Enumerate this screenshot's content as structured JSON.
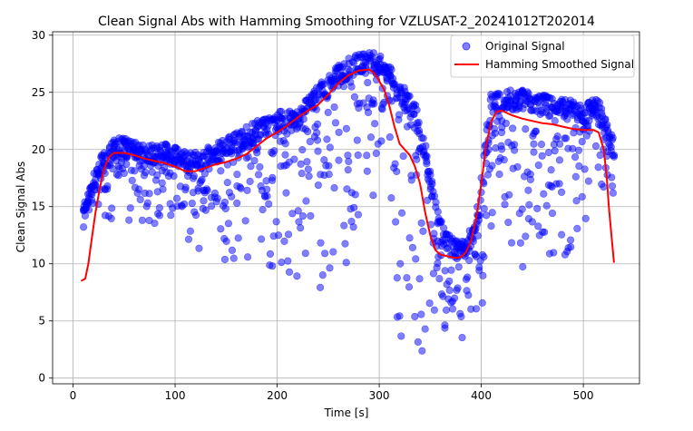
{
  "chart_data": {
    "type": "scatter",
    "title": "Clean Signal Abs with Hamming Smoothing for VZLUSAT-2_20241012T202014",
    "xlabel": "Time [s]",
    "ylabel": "Clean Signal Abs",
    "xlim": [
      -20,
      555
    ],
    "ylim": [
      -0.5,
      30.3
    ],
    "xticks": [
      0,
      100,
      200,
      300,
      400,
      500
    ],
    "yticks": [
      0,
      5,
      10,
      15,
      20,
      25,
      30
    ],
    "grid": true,
    "legend_position": "top-right",
    "series": [
      {
        "name": "Original Signal",
        "type": "scatter",
        "color": "#0000ff",
        "upper_envelope": [
          [
            10,
            14.8
          ],
          [
            15,
            16.5
          ],
          [
            20,
            17.8
          ],
          [
            25,
            19.0
          ],
          [
            30,
            19.9
          ],
          [
            35,
            20.5
          ],
          [
            40,
            20.9
          ],
          [
            45,
            21.1
          ],
          [
            50,
            21.0
          ],
          [
            60,
            20.8
          ],
          [
            70,
            20.6
          ],
          [
            80,
            20.6
          ],
          [
            90,
            20.5
          ],
          [
            100,
            20.2
          ],
          [
            110,
            20.0
          ],
          [
            120,
            19.8
          ],
          [
            130,
            20.2
          ],
          [
            140,
            20.6
          ],
          [
            150,
            21.0
          ],
          [
            160,
            21.5
          ],
          [
            170,
            22.0
          ],
          [
            180,
            22.5
          ],
          [
            190,
            22.9
          ],
          [
            200,
            23.3
          ],
          [
            210,
            23.4
          ],
          [
            220,
            23.5
          ],
          [
            230,
            24.5
          ],
          [
            240,
            25.8
          ],
          [
            250,
            26.5
          ],
          [
            260,
            27.3
          ],
          [
            270,
            28.0
          ],
          [
            280,
            28.5
          ],
          [
            290,
            28.7
          ],
          [
            300,
            28.4
          ],
          [
            310,
            27.5
          ],
          [
            320,
            26.0
          ],
          [
            330,
            25.0
          ],
          [
            335,
            24.5
          ],
          [
            340,
            22.0
          ],
          [
            345,
            20.5
          ],
          [
            350,
            18.0
          ],
          [
            355,
            16.0
          ],
          [
            360,
            14.0
          ],
          [
            370,
            12.5
          ],
          [
            380,
            12.0
          ],
          [
            390,
            13.0
          ],
          [
            395,
            14.5
          ],
          [
            400,
            17.0
          ],
          [
            405,
            22.0
          ],
          [
            410,
            25.0
          ],
          [
            420,
            25.3
          ],
          [
            430,
            25.2
          ],
          [
            440,
            25.3
          ],
          [
            450,
            25.0
          ],
          [
            460,
            24.8
          ],
          [
            470,
            24.5
          ],
          [
            480,
            24.5
          ],
          [
            490,
            24.3
          ],
          [
            500,
            24.0
          ],
          [
            510,
            24.4
          ],
          [
            515,
            24.4
          ],
          [
            520,
            23.0
          ],
          [
            525,
            22.0
          ],
          [
            530,
            21.0
          ]
        ],
        "lower_envelope": [
          [
            10,
            14.5
          ],
          [
            20,
            13.8
          ],
          [
            30,
            13.5
          ],
          [
            40,
            13.0
          ],
          [
            60,
            13.2
          ],
          [
            80,
            13.0
          ],
          [
            100,
            12.5
          ],
          [
            120,
            11.0
          ],
          [
            140,
            10.0
          ],
          [
            160,
            9.5
          ],
          [
            180,
            9.5
          ],
          [
            200,
            8.5
          ],
          [
            220,
            7.5
          ],
          [
            240,
            6.5
          ],
          [
            255,
            6.0
          ],
          [
            265,
            8.0
          ],
          [
            280,
            12.0
          ],
          [
            295,
            16.0
          ],
          [
            305,
            16.5
          ],
          [
            310,
            19.0
          ],
          [
            315,
            6.0
          ],
          [
            320,
            1.0
          ],
          [
            330,
            2.0
          ],
          [
            340,
            1.5
          ],
          [
            345,
            2.0
          ],
          [
            350,
            3.0
          ],
          [
            360,
            2.5
          ],
          [
            370,
            3.5
          ],
          [
            380,
            3.0
          ],
          [
            390,
            4.0
          ],
          [
            400,
            4.5
          ],
          [
            410,
            13.0
          ],
          [
            420,
            15.0
          ],
          [
            430,
            10.0
          ],
          [
            440,
            8.5
          ],
          [
            450,
            8.0
          ],
          [
            460,
            8.5
          ],
          [
            470,
            9.5
          ],
          [
            480,
            9.0
          ],
          [
            490,
            10.0
          ],
          [
            500,
            11.0
          ],
          [
            510,
            12.5
          ],
          [
            520,
            13.0
          ],
          [
            525,
            12.5
          ],
          [
            530,
            15.0
          ]
        ]
      },
      {
        "name": "Hamming Smoothed Signal",
        "type": "line",
        "color": "#ff0000",
        "points": [
          [
            8,
            8.5
          ],
          [
            12,
            8.7
          ],
          [
            15,
            10.0
          ],
          [
            18,
            12.0
          ],
          [
            22,
            14.5
          ],
          [
            26,
            16.5
          ],
          [
            30,
            18.2
          ],
          [
            35,
            19.3
          ],
          [
            40,
            19.7
          ],
          [
            50,
            19.7
          ],
          [
            60,
            19.5
          ],
          [
            70,
            19.2
          ],
          [
            80,
            19.0
          ],
          [
            90,
            18.8
          ],
          [
            100,
            18.5
          ],
          [
            110,
            18.1
          ],
          [
            120,
            18.1
          ],
          [
            130,
            18.4
          ],
          [
            140,
            18.7
          ],
          [
            150,
            18.9
          ],
          [
            160,
            19.2
          ],
          [
            170,
            19.6
          ],
          [
            180,
            20.3
          ],
          [
            190,
            21.0
          ],
          [
            200,
            21.5
          ],
          [
            210,
            22.1
          ],
          [
            220,
            22.8
          ],
          [
            230,
            23.4
          ],
          [
            240,
            23.9
          ],
          [
            250,
            24.8
          ],
          [
            260,
            25.8
          ],
          [
            270,
            26.5
          ],
          [
            280,
            26.9
          ],
          [
            290,
            27.0
          ],
          [
            295,
            26.7
          ],
          [
            300,
            26.0
          ],
          [
            305,
            25.2
          ],
          [
            310,
            23.8
          ],
          [
            315,
            22.0
          ],
          [
            320,
            20.5
          ],
          [
            325,
            20.0
          ],
          [
            330,
            19.5
          ],
          [
            335,
            18.5
          ],
          [
            340,
            17.0
          ],
          [
            345,
            14.5
          ],
          [
            350,
            12.5
          ],
          [
            355,
            11.2
          ],
          [
            360,
            10.8
          ],
          [
            365,
            10.7
          ],
          [
            370,
            10.6
          ],
          [
            375,
            10.5
          ],
          [
            380,
            10.6
          ],
          [
            385,
            11.0
          ],
          [
            390,
            12.0
          ],
          [
            395,
            14.0
          ],
          [
            400,
            17.0
          ],
          [
            405,
            20.5
          ],
          [
            410,
            22.5
          ],
          [
            415,
            23.3
          ],
          [
            420,
            23.4
          ],
          [
            430,
            23.0
          ],
          [
            440,
            22.7
          ],
          [
            450,
            22.5
          ],
          [
            460,
            22.3
          ],
          [
            470,
            22.2
          ],
          [
            480,
            22.0
          ],
          [
            490,
            21.8
          ],
          [
            500,
            21.7
          ],
          [
            510,
            21.7
          ],
          [
            515,
            21.5
          ],
          [
            520,
            20.0
          ],
          [
            523,
            17.5
          ],
          [
            525,
            15.0
          ],
          [
            527,
            13.0
          ],
          [
            530,
            10.1
          ]
        ]
      }
    ]
  }
}
